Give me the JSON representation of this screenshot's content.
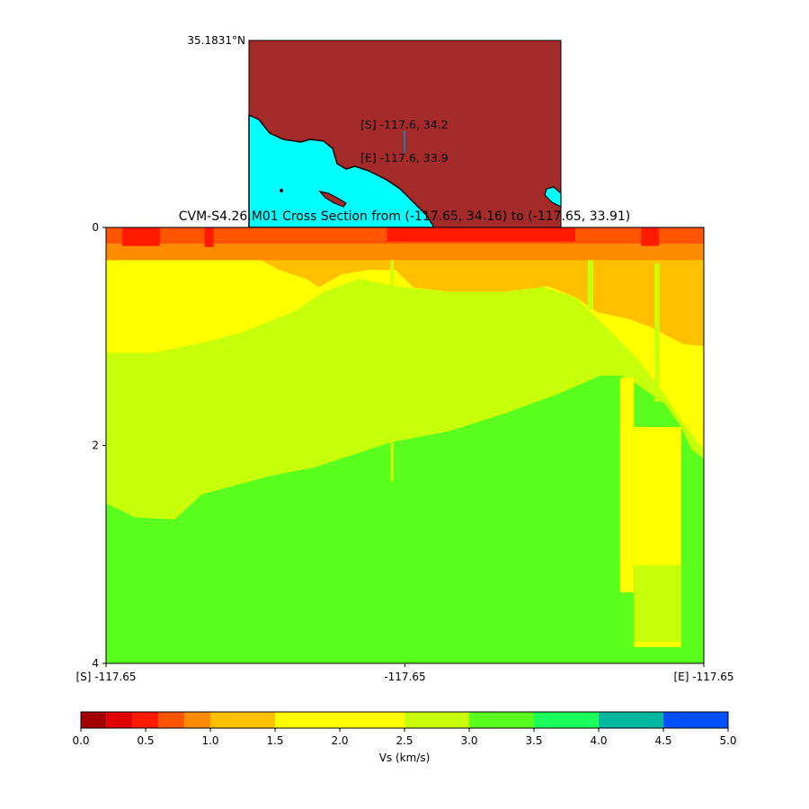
{
  "map": {
    "lat_label": "35.1831°N",
    "start_label": "[S] -117.6, 34.2",
    "end_label": "[E] -117.6, 33.9",
    "land_color": "#a52a2a",
    "water_color": "#00ffff",
    "line_color": "#1f77b4"
  },
  "chart_data": {
    "type": "heatmap",
    "title": "CVM-S4.26.M01 Cross Section from (-117.65, 34.16) to (-117.65, 33.91)",
    "xlabel": "",
    "ylabel": "",
    "x_ticks": [
      "[S] -117.65",
      "-117.65",
      "[E] -117.65"
    ],
    "y_ticks": [
      0,
      2,
      4
    ],
    "ylim": [
      4,
      0
    ],
    "x_unit": "fraction of profile length (S to E)",
    "y_unit": "depth (km)",
    "colorbar": {
      "label": "Vs (km/s)",
      "bounds": [
        0.0,
        0.2,
        0.4,
        0.6,
        0.8,
        1.0,
        1.5,
        2.5,
        3.0,
        3.5,
        4.0,
        4.5,
        5.0
      ],
      "colors": [
        "#a50000",
        "#e00000",
        "#ff1a00",
        "#ff5500",
        "#ff8c00",
        "#ffc000",
        "#ffff00",
        "#c8ff0a",
        "#5aff1e",
        "#1aff5a",
        "#00b8a0",
        "#0050ff"
      ],
      "tick_labels": [
        "0.0",
        "0.5",
        "1.0",
        "1.5",
        "2.0",
        "2.5",
        "3.0",
        "3.5",
        "4.0",
        "4.5",
        "5.0"
      ],
      "tick_values": [
        0,
        0.5,
        1,
        1.5,
        2,
        2.5,
        3,
        3.5,
        4,
        4.5,
        5
      ]
    },
    "layers": [
      {
        "name": "Vs 3.0-3.5 top boundary",
        "vs_below": 3.25,
        "vs_above": 2.75,
        "points": [
          [
            0,
            2.53
          ],
          [
            0.048,
            2.66
          ],
          [
            0.115,
            2.68
          ],
          [
            0.16,
            2.45
          ],
          [
            0.274,
            2.28
          ],
          [
            0.35,
            2.2
          ],
          [
            0.477,
            1.97
          ],
          [
            0.574,
            1.87
          ],
          [
            0.665,
            1.71
          ],
          [
            0.755,
            1.53
          ],
          [
            0.827,
            1.36
          ],
          [
            0.86,
            1.36
          ],
          [
            0.883,
            1.42
          ],
          [
            0.935,
            1.62
          ],
          [
            0.962,
            1.83
          ],
          [
            0.98,
            2.04
          ],
          [
            1,
            2.12
          ]
        ]
      },
      {
        "name": "Vs 2.5-3.0 top boundary",
        "vs_above": 2.0,
        "points": [
          [
            0,
            1.15
          ],
          [
            0.078,
            1.15
          ],
          [
            0.168,
            1.05
          ],
          [
            0.229,
            0.96
          ],
          [
            0.319,
            0.76
          ],
          [
            0.364,
            0.59
          ],
          [
            0.424,
            0.47
          ],
          [
            0.484,
            0.54
          ],
          [
            0.574,
            0.59
          ],
          [
            0.725,
            0.54
          ],
          [
            0.785,
            0.64
          ],
          [
            0.845,
            0.96
          ],
          [
            0.89,
            1.21
          ],
          [
            0.935,
            1.54
          ],
          [
            0.965,
            1.79
          ],
          [
            1,
            2.04
          ]
        ]
      },
      {
        "name": "Vs 1.5-2.5 top boundary",
        "vs_above": 1.25,
        "points": [
          [
            0,
            0.3
          ],
          [
            0.259,
            0.3
          ],
          [
            0.289,
            0.39
          ],
          [
            0.334,
            0.47
          ],
          [
            0.356,
            0.55
          ],
          [
            0.394,
            0.43
          ],
          [
            0.439,
            0.39
          ],
          [
            0.484,
            0.39
          ],
          [
            0.514,
            0.55
          ],
          [
            0.574,
            0.59
          ],
          [
            0.665,
            0.59
          ],
          [
            0.74,
            0.54
          ],
          [
            0.785,
            0.64
          ],
          [
            0.823,
            0.78
          ],
          [
            0.875,
            0.84
          ],
          [
            0.913,
            0.92
          ],
          [
            0.965,
            1.07
          ],
          [
            1,
            1.09
          ]
        ]
      }
    ],
    "near_surface": [
      {
        "x": [
          0,
          1
        ],
        "depth": [
          0.15,
          0.3
        ],
        "vs": 0.9
      },
      {
        "x": [
          0,
          1
        ],
        "depth": [
          0,
          0.15
        ],
        "vs": 0.7
      },
      {
        "x": [
          0.027,
          0.09
        ],
        "depth": [
          0,
          0.17
        ],
        "vs": 0.5
      },
      {
        "x": [
          0.165,
          0.18
        ],
        "depth": [
          0,
          0.18
        ],
        "vs": 0.5
      },
      {
        "x": [
          0.47,
          0.785
        ],
        "depth": [
          0,
          0.13
        ],
        "vs": 0.5
      },
      {
        "x": [
          0.895,
          0.925
        ],
        "depth": [
          0,
          0.17
        ],
        "vs": 0.5
      }
    ],
    "anomalies": [
      {
        "x": [
          0.476,
          0.481
        ],
        "depth": [
          0.3,
          2.33
        ],
        "vs": 2.75
      },
      {
        "x": [
          0.86,
          0.883
        ],
        "depth": [
          1.38,
          3.35
        ],
        "vs": 2.0
      },
      {
        "x": [
          0.883,
          0.962
        ],
        "depth": [
          1.83,
          3.1
        ],
        "vs": 2.0
      },
      {
        "x": [
          0.883,
          0.962
        ],
        "depth": [
          3.1,
          3.8
        ],
        "vs": 2.75
      },
      {
        "x": [
          0.883,
          0.962
        ],
        "depth": [
          3.8,
          3.85
        ],
        "vs": 2.0
      },
      {
        "x": [
          0.806,
          0.815
        ],
        "depth": [
          0.3,
          0.75
        ],
        "vs": 2.75
      },
      {
        "x": [
          0.918,
          0.926
        ],
        "depth": [
          0.33,
          1.6
        ],
        "vs": 2.75
      }
    ]
  }
}
